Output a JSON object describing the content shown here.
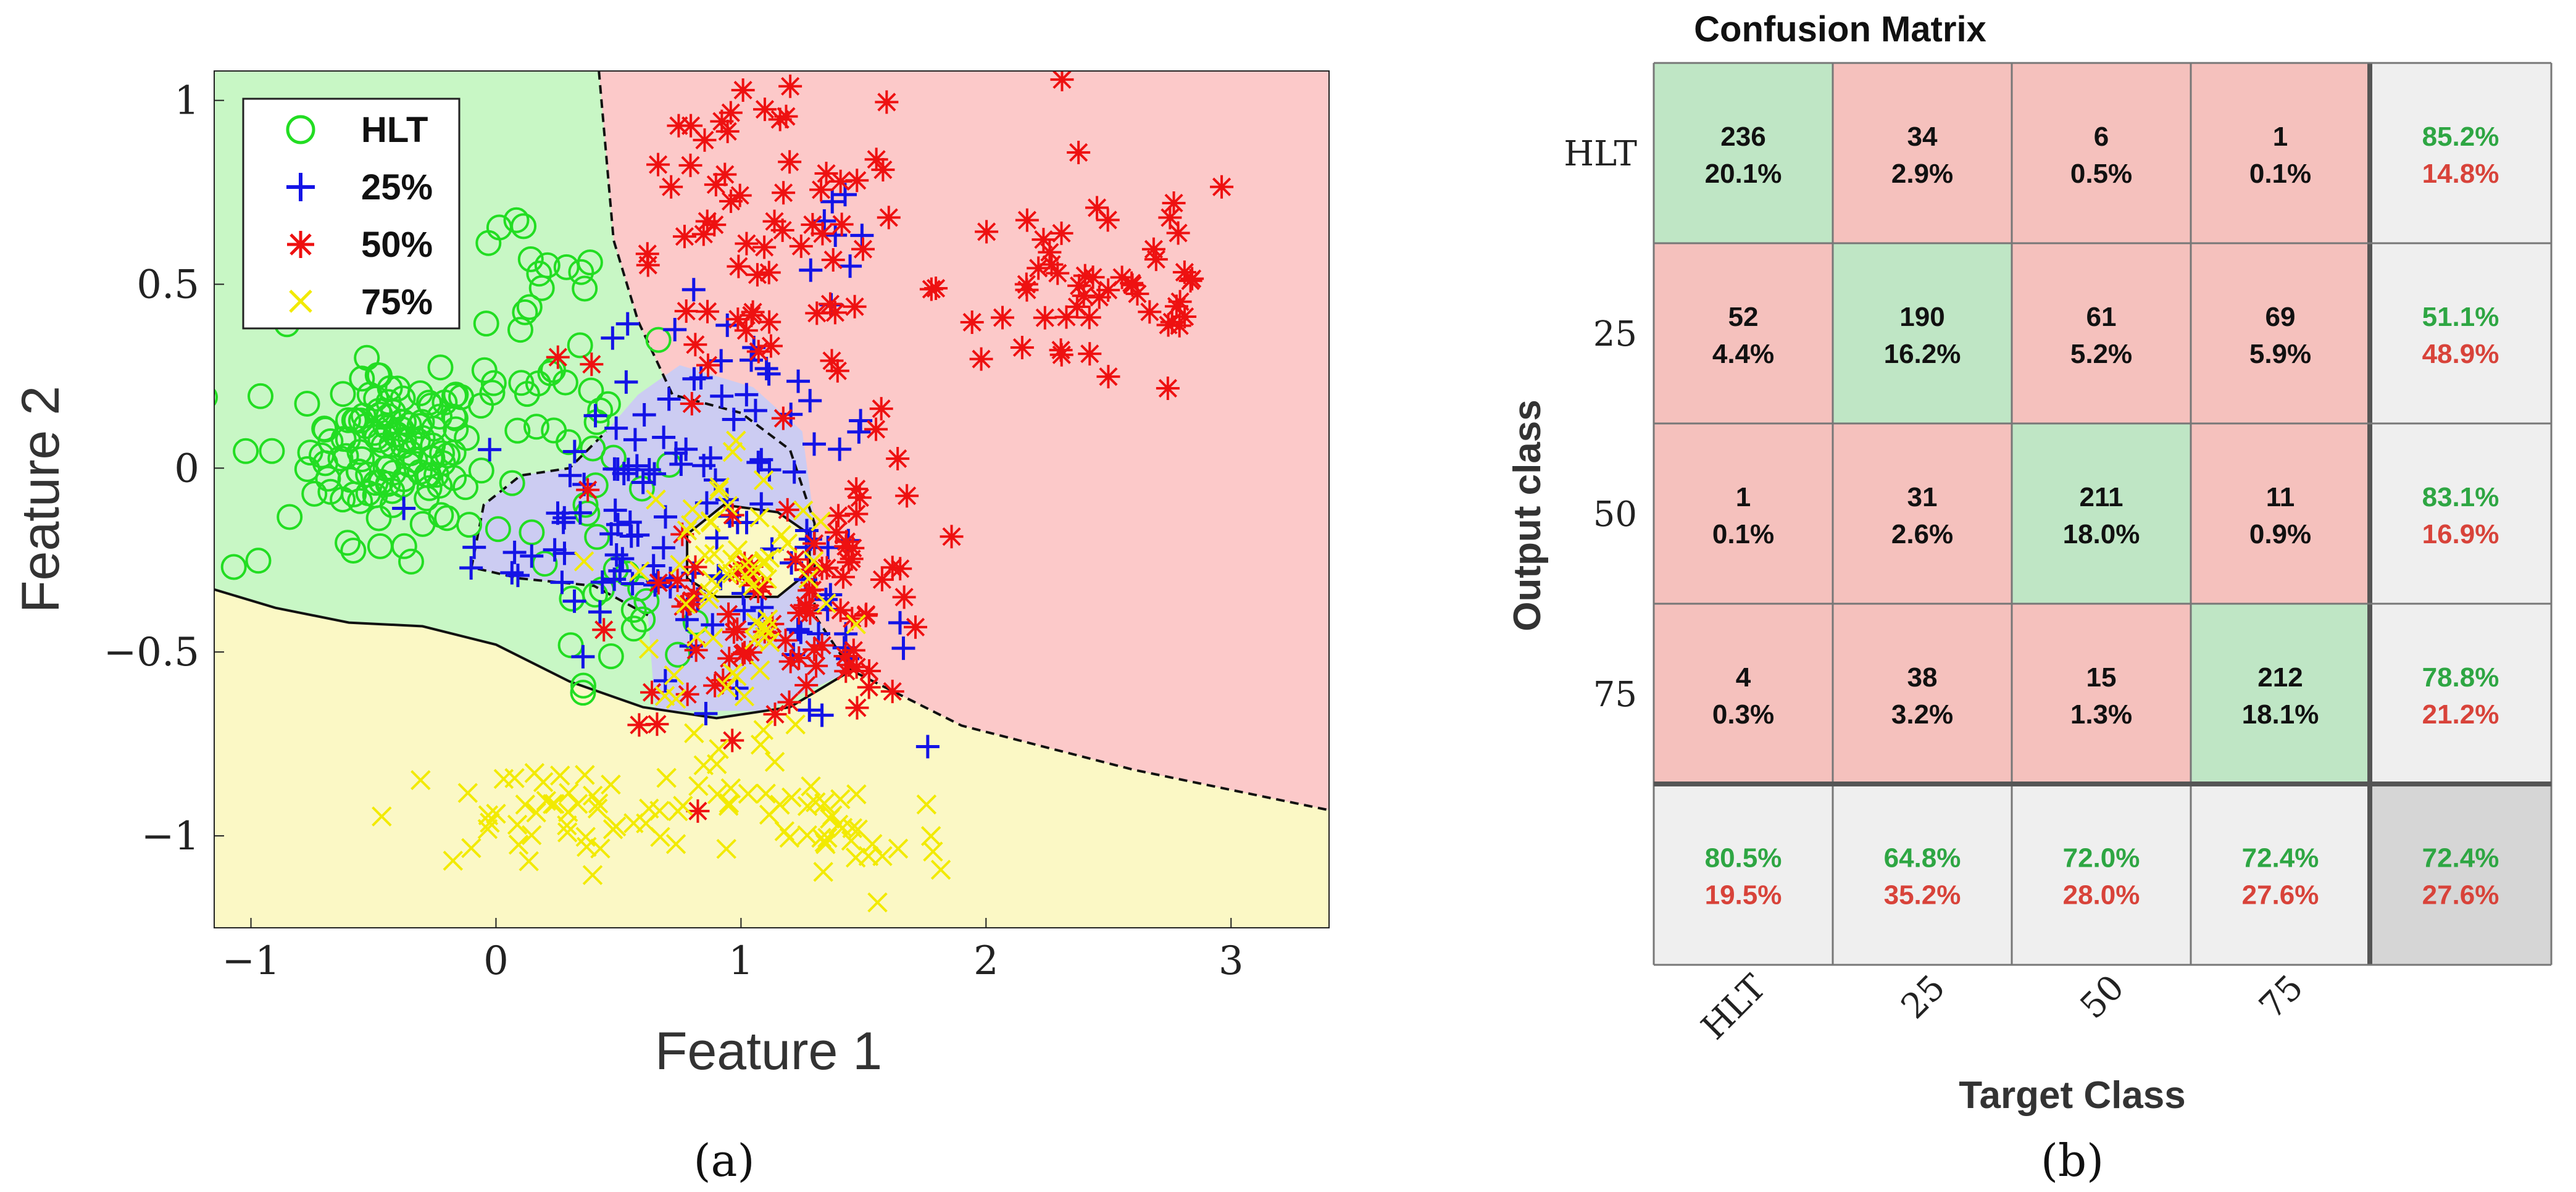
{
  "chart_data": [
    {
      "type": "scatter",
      "panel_label": "(a)",
      "xlabel": "Feature 1",
      "ylabel": "Feature 2",
      "xlim": [
        -1.15,
        3.4
      ],
      "ylim": [
        -1.25,
        1.08
      ],
      "xticks": [
        -1,
        0,
        1,
        2,
        3
      ],
      "yticks": [
        -1,
        -0.5,
        0,
        0.5,
        1
      ],
      "xtick_labels": [
        "−1",
        "0",
        "1",
        "2",
        "3"
      ],
      "ytick_labels": [
        "−1",
        "−0.5",
        "0",
        "0.5",
        "1"
      ],
      "legend_position": "top-left",
      "region_colors": {
        "HLT": "#c8f7c5",
        "25%": "#ccccf2",
        "50%": "#fcc9c9",
        "75%": "#fbf8c5"
      },
      "boundaries": {
        "green_red": [
          [
            0.42,
            1.08
          ],
          [
            0.48,
            0.62
          ],
          [
            0.58,
            0.4
          ],
          [
            0.72,
            0.2
          ],
          [
            1.0,
            0.15
          ],
          [
            1.2,
            0.05
          ],
          [
            1.3,
            -0.15
          ],
          [
            1.3,
            -0.4
          ],
          [
            1.45,
            -0.55
          ],
          [
            1.9,
            -0.7
          ],
          [
            2.6,
            -0.82
          ],
          [
            3.4,
            -0.93
          ]
        ],
        "green_yellow": [
          [
            -1.15,
            -0.33
          ],
          [
            -0.9,
            -0.38
          ],
          [
            -0.6,
            -0.42
          ],
          [
            -0.3,
            -0.43
          ],
          [
            0.0,
            -0.48
          ],
          [
            0.3,
            -0.58
          ],
          [
            0.6,
            -0.65
          ],
          [
            0.9,
            -0.68
          ],
          [
            1.2,
            -0.65
          ],
          [
            1.45,
            -0.55
          ]
        ],
        "blue_region": [
          [
            0.58,
            0.2
          ],
          [
            0.75,
            0.28
          ],
          [
            1.05,
            0.22
          ],
          [
            1.25,
            0.1
          ],
          [
            1.3,
            -0.15
          ],
          [
            1.3,
            -0.4
          ],
          [
            1.45,
            -0.55
          ],
          [
            1.1,
            -0.66
          ],
          [
            0.65,
            -0.66
          ],
          [
            0.62,
            -0.4
          ],
          [
            0.4,
            -0.32
          ],
          [
            0.1,
            -0.3
          ],
          [
            -0.1,
            -0.27
          ],
          [
            -0.05,
            -0.1
          ],
          [
            0.1,
            -0.02
          ],
          [
            0.3,
            0.0
          ],
          [
            0.45,
            0.1
          ]
        ],
        "yellow_island": [
          [
            0.78,
            -0.18
          ],
          [
            0.93,
            -0.1
          ],
          [
            1.15,
            -0.12
          ],
          [
            1.28,
            -0.18
          ],
          [
            1.28,
            -0.28
          ],
          [
            1.15,
            -0.35
          ],
          [
            0.9,
            -0.35
          ],
          [
            0.78,
            -0.3
          ]
        ]
      },
      "series": [
        {
          "name": "HLT",
          "marker": "circle",
          "color": "#22dd22",
          "clusters": [
            {
              "cx": -0.42,
              "cy": 0.05,
              "sx": 0.17,
              "sy": 0.1,
              "n": 95
            },
            {
              "cx": -0.5,
              "cy": 0.0,
              "sx": 0.3,
              "sy": 0.18,
              "n": 35
            },
            {
              "cx": 0.15,
              "cy": 0.45,
              "sx": 0.18,
              "sy": 0.2,
              "n": 26
            },
            {
              "cx": 0.4,
              "cy": 0.02,
              "sx": 0.18,
              "sy": 0.22,
              "n": 22
            },
            {
              "cx": 0.5,
              "cy": -0.38,
              "sx": 0.14,
              "sy": 0.1,
              "n": 14
            }
          ]
        },
        {
          "name": "25%",
          "marker": "plus",
          "color": "#1414e6",
          "clusters": [
            {
              "cx": 0.55,
              "cy": -0.15,
              "sx": 0.32,
              "sy": 0.17,
              "n": 70
            },
            {
              "cx": 1.0,
              "cy": 0.1,
              "sx": 0.3,
              "sy": 0.2,
              "n": 38
            },
            {
              "cx": 1.2,
              "cy": -0.45,
              "sx": 0.25,
              "sy": 0.12,
              "n": 24
            },
            {
              "cx": 1.45,
              "cy": 0.55,
              "sx": 0.2,
              "sy": 0.12,
              "n": 8
            }
          ]
        },
        {
          "name": "50%",
          "marker": "asterisk",
          "color": "#ee1111",
          "clusters": [
            {
              "cx": 2.45,
              "cy": 0.5,
              "sx": 0.32,
              "sy": 0.17,
              "n": 55
            },
            {
              "cx": 1.1,
              "cy": 0.5,
              "sx": 0.32,
              "sy": 0.22,
              "n": 60
            },
            {
              "cx": 1.45,
              "cy": -0.3,
              "sx": 0.17,
              "sy": 0.17,
              "n": 50
            },
            {
              "cx": 0.95,
              "cy": -0.45,
              "sx": 0.22,
              "sy": 0.12,
              "n": 40
            },
            {
              "cx": 0.9,
              "cy": 0.9,
              "sx": 0.22,
              "sy": 0.12,
              "n": 10
            }
          ]
        },
        {
          "name": "75%",
          "marker": "x",
          "color": "#f2ea00",
          "clusters": [
            {
              "cx": 0.2,
              "cy": -0.95,
              "sx": 0.32,
              "sy": 0.07,
              "n": 45
            },
            {
              "cx": 1.4,
              "cy": -1.0,
              "sx": 0.22,
              "sy": 0.1,
              "n": 35
            },
            {
              "cx": 1.0,
              "cy": -0.3,
              "sx": 0.22,
              "sy": 0.2,
              "n": 60
            },
            {
              "cx": 0.9,
              "cy": -0.8,
              "sx": 0.2,
              "sy": 0.1,
              "n": 18
            }
          ]
        }
      ]
    },
    {
      "type": "table",
      "subtype": "confusion_matrix",
      "panel_label": "(b)",
      "title": "Confusion Matrix",
      "xlabel": "Target Class",
      "ylabel": "Output class",
      "row_labels": [
        "HLT",
        "25",
        "50",
        "75"
      ],
      "col_labels": [
        "HLT",
        "25",
        "50",
        "75"
      ],
      "counts": [
        [
          236,
          34,
          6,
          1
        ],
        [
          52,
          190,
          61,
          69
        ],
        [
          1,
          31,
          211,
          11
        ],
        [
          4,
          38,
          15,
          212
        ]
      ],
      "percents": [
        [
          "20.1%",
          "2.9%",
          "0.5%",
          "0.1%"
        ],
        [
          "4.4%",
          "16.2%",
          "5.2%",
          "5.9%"
        ],
        [
          "0.1%",
          "2.6%",
          "18.0%",
          "0.9%"
        ],
        [
          "0.3%",
          "3.2%",
          "1.3%",
          "18.1%"
        ]
      ],
      "row_summary": [
        [
          "85.2%",
          "14.8%"
        ],
        [
          "51.1%",
          "48.9%"
        ],
        [
          "83.1%",
          "16.9%"
        ],
        [
          "78.8%",
          "21.2%"
        ]
      ],
      "col_summary": [
        [
          "80.5%",
          "19.5%"
        ],
        [
          "64.8%",
          "35.2%"
        ],
        [
          "72.0%",
          "28.0%"
        ],
        [
          "72.4%",
          "27.6%"
        ]
      ],
      "overall": [
        "72.4%",
        "27.6%"
      ],
      "colors": {
        "diag": "#bfe6c5",
        "offdiag": "#f5c1bd",
        "summary": "#efefef",
        "overall": "#d6d6d6",
        "good_text": "#2ea643",
        "bad_text": "#d8433a"
      }
    }
  ]
}
